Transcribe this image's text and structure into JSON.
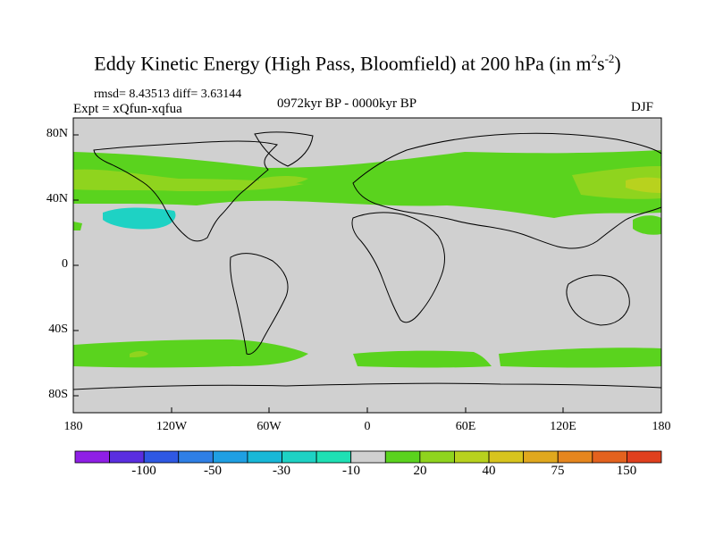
{
  "title": {
    "main": "Eddy Kinetic Energy (High Pass, Bloomfield) at 200 hPa (in m",
    "exp1": "2",
    "mid": "s",
    "exp2": "-2",
    "close": ")"
  },
  "stats": "rmsd= 8.43513 diff= 3.63144",
  "experiment": "Expt = xQfun-xqfua",
  "period": "0972kyr BP - 0000kyr BP",
  "season": "DJF",
  "lat_labels": [
    "80N",
    "40N",
    "0",
    "40S",
    "80S"
  ],
  "lon_labels": [
    "180",
    "120W",
    "60W",
    "0",
    "60E",
    "120E",
    "180"
  ],
  "colorbar": {
    "colors": [
      "#8f1fe6",
      "#5a2ee0",
      "#2f58e3",
      "#2f7fe6",
      "#1f9fe3",
      "#18b8d8",
      "#1ed2c4",
      "#1ee0b4",
      "#d0d0d0",
      "#5ad31e",
      "#8fd41e",
      "#b8d21e",
      "#d8c41e",
      "#e0a81e",
      "#e6861e",
      "#e3621e",
      "#e0401e"
    ],
    "labels": [
      "-100",
      "-50",
      "-30",
      "-10",
      "20",
      "40",
      "75",
      "150"
    ]
  },
  "fill_colors": {
    "background": "#d0d0d0",
    "positive_low": "#5ad31e",
    "positive_mid": "#8fd41e",
    "positive_high": "#b8d21e",
    "negative": "#1ed2c4"
  }
}
